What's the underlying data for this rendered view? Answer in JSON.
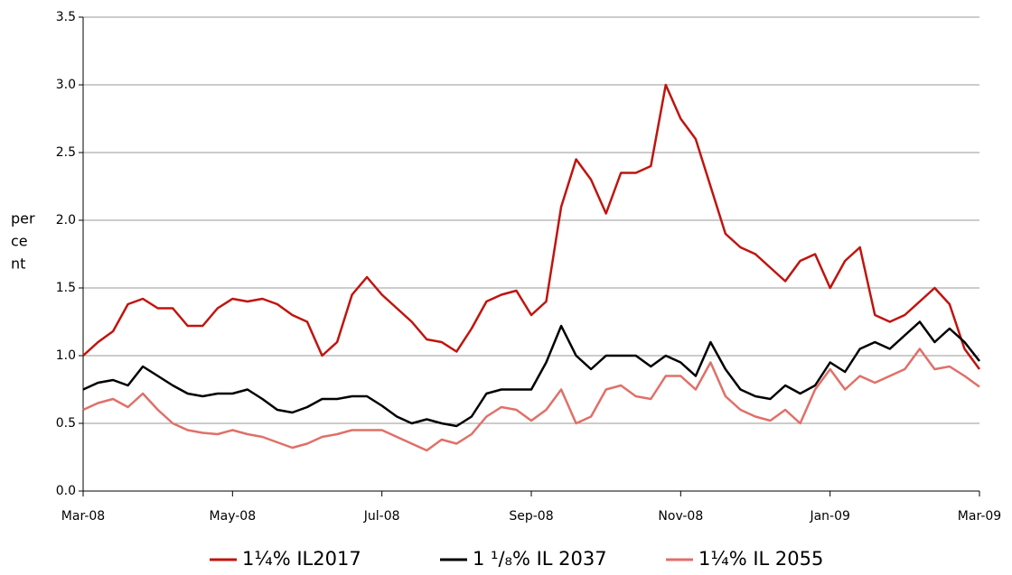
{
  "chart_data": {
    "type": "line",
    "y_label": [
      "per",
      "ce",
      "nt"
    ],
    "categories": [
      "Mar-08",
      null,
      null,
      null,
      null,
      null,
      null,
      null,
      null,
      null,
      "May-08",
      null,
      null,
      null,
      null,
      null,
      null,
      null,
      null,
      null,
      "Jul-08",
      null,
      null,
      null,
      null,
      null,
      null,
      null,
      null,
      null,
      "Sep-08",
      null,
      null,
      null,
      null,
      null,
      null,
      null,
      null,
      null,
      "Nov-08",
      null,
      null,
      null,
      null,
      null,
      null,
      null,
      null,
      null,
      "Jan-09",
      null,
      null,
      null,
      null,
      null,
      null,
      null,
      null,
      null,
      "Mar-09"
    ],
    "series": [
      {
        "name": "1¼% IL2017",
        "color": "#c0140e",
        "values": [
          1.0,
          1.1,
          1.18,
          1.38,
          1.42,
          1.35,
          1.35,
          1.22,
          1.22,
          1.35,
          1.42,
          1.4,
          1.42,
          1.38,
          1.3,
          1.25,
          1.0,
          1.1,
          1.45,
          1.58,
          1.45,
          1.35,
          1.25,
          1.12,
          1.1,
          1.03,
          1.2,
          1.4,
          1.45,
          1.48,
          1.3,
          1.4,
          2.1,
          2.45,
          2.3,
          2.05,
          2.35,
          2.35,
          2.4,
          3.0,
          2.75,
          2.6,
          2.25,
          1.9,
          1.8,
          1.75,
          1.65,
          1.55,
          1.7,
          1.75,
          1.5,
          1.7,
          1.8,
          1.3,
          1.25,
          1.3,
          1.4,
          1.5,
          1.38,
          1.05,
          0.9
        ]
      },
      {
        "name": "1 ¹/₈% IL 2037",
        "color": "#000000",
        "values": [
          0.75,
          0.8,
          0.82,
          0.78,
          0.92,
          0.85,
          0.78,
          0.72,
          0.7,
          0.72,
          0.72,
          0.75,
          0.68,
          0.6,
          0.58,
          0.62,
          0.68,
          0.68,
          0.7,
          0.7,
          0.63,
          0.55,
          0.5,
          0.53,
          0.5,
          0.48,
          0.55,
          0.72,
          0.75,
          0.75,
          0.75,
          0.95,
          1.22,
          1.0,
          0.9,
          1.0,
          1.0,
          1.0,
          0.92,
          1.0,
          0.95,
          0.85,
          1.1,
          0.9,
          0.75,
          0.7,
          0.68,
          0.78,
          0.72,
          0.78,
          0.95,
          0.88,
          1.05,
          1.1,
          1.05,
          1.15,
          1.25,
          1.1,
          1.2,
          1.1,
          0.96
        ]
      },
      {
        "name": "1¼% IL 2055",
        "color": "#e07068",
        "values": [
          0.6,
          0.65,
          0.68,
          0.62,
          0.72,
          0.6,
          0.5,
          0.45,
          0.43,
          0.42,
          0.45,
          0.42,
          0.4,
          0.36,
          0.32,
          0.35,
          0.4,
          0.42,
          0.45,
          0.45,
          0.45,
          0.4,
          0.35,
          0.3,
          0.38,
          0.35,
          0.42,
          0.55,
          0.62,
          0.6,
          0.52,
          0.6,
          0.75,
          0.5,
          0.55,
          0.75,
          0.78,
          0.7,
          0.68,
          0.85,
          0.85,
          0.75,
          0.95,
          0.7,
          0.6,
          0.55,
          0.52,
          0.6,
          0.5,
          0.75,
          0.9,
          0.75,
          0.85,
          0.8,
          0.85,
          0.9,
          1.05,
          0.9,
          0.92,
          0.85,
          0.77
        ]
      }
    ],
    "ylim": [
      0,
      3.5
    ],
    "yticks": [
      {
        "value": 0,
        "label": "0.0"
      },
      0.5,
      {
        "value": 1,
        "label": "1.0"
      },
      1.5,
      {
        "value": 2,
        "label": "2.0"
      },
      2.5,
      {
        "value": 3,
        "label": "3.0"
      },
      3.5
    ],
    "grid": true,
    "legend": "bottom"
  }
}
